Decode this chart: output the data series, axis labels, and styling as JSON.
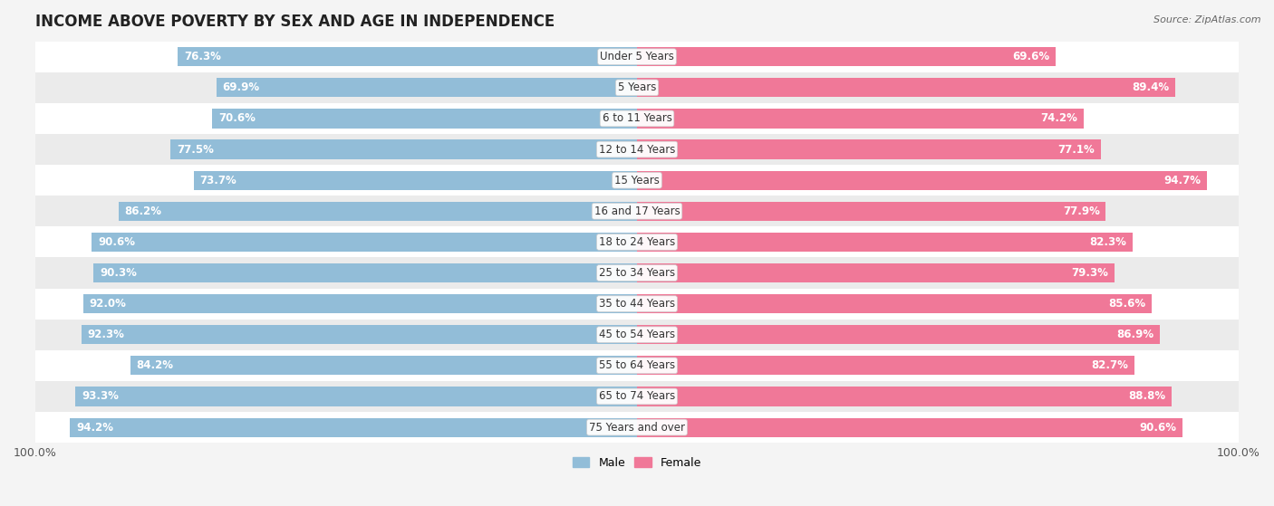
{
  "title": "INCOME ABOVE POVERTY BY SEX AND AGE IN INDEPENDENCE",
  "source": "Source: ZipAtlas.com",
  "categories": [
    "Under 5 Years",
    "5 Years",
    "6 to 11 Years",
    "12 to 14 Years",
    "15 Years",
    "16 and 17 Years",
    "18 to 24 Years",
    "25 to 34 Years",
    "35 to 44 Years",
    "45 to 54 Years",
    "55 to 64 Years",
    "65 to 74 Years",
    "75 Years and over"
  ],
  "male_values": [
    76.3,
    69.9,
    70.6,
    77.5,
    73.7,
    86.2,
    90.6,
    90.3,
    92.0,
    92.3,
    84.2,
    93.3,
    94.2
  ],
  "female_values": [
    69.6,
    89.4,
    74.2,
    77.1,
    94.7,
    77.9,
    82.3,
    79.3,
    85.6,
    86.9,
    82.7,
    88.8,
    90.6
  ],
  "male_color": "#92bdd8",
  "female_color": "#f07898",
  "bar_height": 0.62,
  "background_color": "#f4f4f4",
  "row_colors": [
    "#ffffff",
    "#ebebeb"
  ],
  "title_fontsize": 12,
  "label_fontsize": 8.5,
  "value_fontsize": 8.5,
  "axis_max": 100.0,
  "legend_male_label": "Male",
  "legend_female_label": "Female"
}
